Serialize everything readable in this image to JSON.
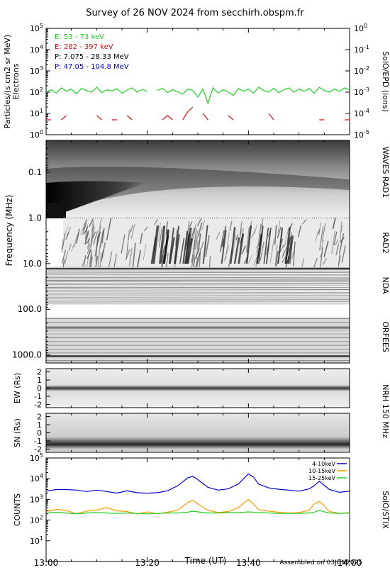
{
  "title": "Survey of 26 NOV 2024 from secchirh.obspm.fr",
  "footer": "Assembled on 03JUN2025",
  "time_axis": {
    "label": "Time (UT)",
    "start": "13:00",
    "end": "14:00",
    "major_ticks": [
      "13:00",
      "13:20",
      "13:40",
      "14:00"
    ]
  },
  "chart_data": [
    {
      "panel": "epd",
      "type": "line",
      "right_label": "SolO/EPD (ions)",
      "left_label_1": "Particles/(s cm2 sr MeV)",
      "left_label_2": "Electrons",
      "y_left_log_range": [
        1,
        100000
      ],
      "y_left_ticks": [
        {
          "mant": "10",
          "exp": "0"
        },
        {
          "mant": "10",
          "exp": "1"
        },
        {
          "mant": "10",
          "exp": "2"
        },
        {
          "mant": "10",
          "exp": "3"
        },
        {
          "mant": "10",
          "exp": "4"
        },
        {
          "mant": "10",
          "exp": "5"
        }
      ],
      "y_right_log_range": [
        1e-05,
        1
      ],
      "y_right_ticks": [
        {
          "mant": "10",
          "exp": "-5"
        },
        {
          "mant": "10",
          "exp": "-4"
        },
        {
          "mant": "10",
          "exp": "-3"
        },
        {
          "mant": "10",
          "exp": "-2"
        },
        {
          "mant": "10",
          "exp": "-1"
        },
        {
          "mant": "10",
          "exp": "0"
        }
      ],
      "legend": [
        {
          "label": "E: 53 - 73 keV",
          "color": "#22cc22"
        },
        {
          "label": "E: 282 - 397 keV",
          "color": "#cc1111"
        },
        {
          "label": "P: 7.075 - 28.33 MeV",
          "color": "#000000"
        },
        {
          "label": "P: 47.05 - 104.8 MeV",
          "color": "#0000cc"
        }
      ],
      "series": [
        {
          "color": "#22cc22",
          "x_minutes": [
            0,
            1,
            2,
            3,
            4,
            5,
            6,
            7,
            8,
            9,
            10,
            11,
            12,
            13,
            14,
            15,
            16,
            17,
            18,
            19,
            20,
            21,
            22,
            23,
            24,
            25,
            26,
            27,
            28,
            29,
            30,
            31,
            32,
            33,
            34,
            35,
            36,
            37,
            38,
            39,
            40,
            41,
            42,
            43,
            44,
            45,
            46,
            47,
            48,
            49,
            50,
            51,
            52,
            53,
            54,
            55,
            56,
            57,
            58,
            59,
            60
          ],
          "values": [
            100,
            130,
            90,
            160,
            110,
            140,
            85,
            150,
            120,
            100,
            170,
            95,
            130,
            115,
            145,
            90,
            125,
            160,
            100,
            135,
            110,
            null,
            120,
            150,
            95,
            130,
            105,
            80,
            140,
            120,
            60,
            140,
            30,
            160,
            90,
            130,
            100,
            70,
            150,
            110,
            140,
            90,
            170,
            120,
            100,
            150,
            95,
            130,
            160,
            100,
            140,
            110,
            150,
            90,
            170,
            120,
            100,
            140,
            110,
            160,
            130
          ]
        },
        {
          "color": "#cc1111",
          "x_minutes": [
            0,
            1,
            2,
            3,
            4,
            5,
            6,
            7,
            8,
            9,
            10,
            11,
            12,
            13,
            14,
            15,
            16,
            17,
            18,
            19,
            20,
            21,
            22,
            23,
            24,
            25,
            26,
            27,
            28,
            29,
            30,
            31,
            32,
            33,
            34,
            35,
            36,
            37,
            38,
            39,
            40,
            41,
            42,
            43,
            44,
            45,
            46,
            47,
            48,
            49,
            50,
            51,
            52,
            53,
            54,
            55,
            56,
            57,
            58,
            59,
            60
          ],
          "values": [
            5,
            5,
            null,
            5,
            8,
            null,
            5,
            null,
            5,
            null,
            8,
            5,
            null,
            5,
            5,
            null,
            8,
            5,
            null,
            null,
            5,
            null,
            null,
            5,
            8,
            5,
            null,
            5,
            12,
            20,
            null,
            10,
            5,
            null,
            5,
            null,
            8,
            5,
            null,
            null,
            5,
            null,
            5,
            null,
            10,
            5,
            null,
            5,
            null,
            null,
            5,
            null,
            5,
            null,
            5,
            5,
            null,
            5,
            null,
            5,
            5
          ]
        }
      ]
    },
    {
      "panel": "frequency",
      "type": "heatmap",
      "ylabel": "Frequency (MHz)",
      "y_log_range": [
        0.02,
        1500
      ],
      "y_ticks": [
        "0.1",
        "1.0",
        "10.0",
        "100.0",
        "1000.0"
      ],
      "instruments": [
        "WAVES RAD1",
        "RAD2",
        "NDA",
        "ORFEES"
      ]
    },
    {
      "panel": "nrh_ew",
      "type": "heatmap",
      "ylabel": "EW (Rs)",
      "y_range": [
        -2.4,
        2.4
      ],
      "y_ticks": [
        "2",
        "1",
        "0",
        "-1",
        "-2"
      ]
    },
    {
      "panel": "nrh_sn",
      "type": "heatmap",
      "ylabel": "SN (Rs)",
      "y_range": [
        -2.4,
        2.4
      ],
      "y_ticks": [
        "2",
        "1",
        "0",
        "-1",
        "-2"
      ],
      "right_label": "NRH 150 MHz"
    },
    {
      "panel": "stix",
      "type": "line",
      "ylabel": "COUNTS",
      "right_label": "SolO/STIX",
      "y_log_range": [
        1,
        100000
      ],
      "y_ticks": [
        {
          "mant": "10",
          "exp": "1"
        },
        {
          "mant": "10",
          "exp": "2"
        },
        {
          "mant": "10",
          "exp": "3"
        },
        {
          "mant": "10",
          "exp": "4"
        },
        {
          "mant": "10",
          "exp": "5"
        }
      ],
      "series": [
        {
          "name": "4-10keV",
          "color": "#0000cc",
          "x_minutes": [
            0,
            2,
            4,
            6,
            8,
            10,
            12,
            14,
            16,
            18,
            20,
            22,
            24,
            26,
            28,
            29,
            30,
            32,
            34,
            36,
            38,
            40,
            41,
            42,
            44,
            46,
            48,
            50,
            52,
            53,
            54,
            55,
            56,
            58,
            60
          ],
          "values": [
            2500,
            3000,
            3000,
            2800,
            2400,
            2800,
            2400,
            2000,
            2600,
            2100,
            2000,
            2100,
            2600,
            4500,
            11000,
            13000,
            9000,
            3800,
            2800,
            3200,
            5500,
            17000,
            12000,
            5500,
            3600,
            3100,
            2800,
            2500,
            3200,
            4500,
            7500,
            4800,
            3000,
            2200,
            2500
          ]
        },
        {
          "name": "10-15keV",
          "color": "#ff9900",
          "x_minutes": [
            0,
            2,
            4,
            6,
            8,
            10,
            12,
            14,
            16,
            18,
            20,
            22,
            24,
            26,
            28,
            29,
            30,
            32,
            34,
            36,
            38,
            40,
            41,
            42,
            44,
            46,
            48,
            50,
            52,
            53,
            54,
            55,
            56,
            58,
            60
          ],
          "values": [
            260,
            330,
            290,
            200,
            270,
            310,
            400,
            280,
            260,
            200,
            250,
            200,
            240,
            300,
            700,
            900,
            600,
            300,
            230,
            260,
            400,
            1000,
            600,
            320,
            270,
            240,
            220,
            230,
            300,
            600,
            800,
            500,
            260,
            210,
            230
          ]
        },
        {
          "name": "15-25keV",
          "color": "#22cc22",
          "x_minutes": [
            0,
            2,
            4,
            6,
            8,
            10,
            12,
            14,
            16,
            18,
            20,
            22,
            24,
            26,
            28,
            29,
            30,
            32,
            34,
            36,
            38,
            40,
            41,
            42,
            44,
            46,
            48,
            50,
            52,
            53,
            54,
            55,
            56,
            58,
            60
          ],
          "values": [
            220,
            240,
            220,
            200,
            220,
            230,
            220,
            210,
            220,
            210,
            200,
            210,
            220,
            220,
            240,
            270,
            250,
            220,
            220,
            230,
            230,
            250,
            240,
            230,
            220,
            210,
            210,
            210,
            220,
            240,
            300,
            250,
            220,
            210,
            220
          ]
        }
      ]
    }
  ]
}
